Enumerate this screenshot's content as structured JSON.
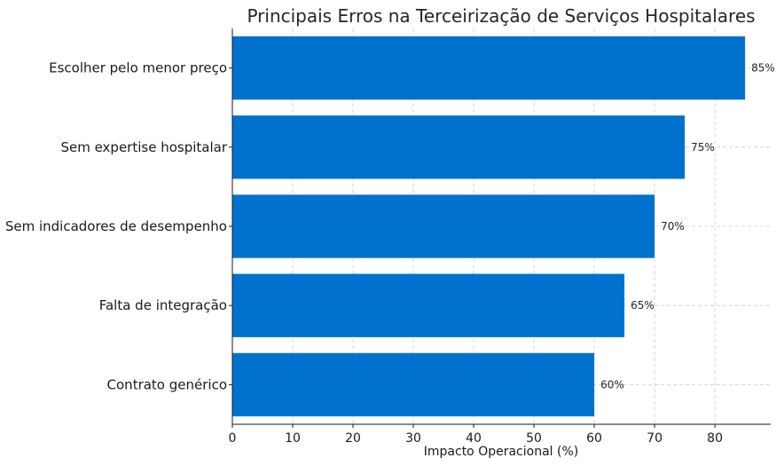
{
  "chart_data": {
    "type": "bar",
    "orientation": "horizontal",
    "title": "Principais Erros na Terceirização de Serviços Hospitalares",
    "xlabel": "Impacto Operacional (%)",
    "ylabel": "",
    "categories": [
      "Escolher pelo menor preço",
      "Sem expertise hospitalar",
      "Sem indicadores de desempenho",
      "Falta de integração",
      "Contrato genérico"
    ],
    "values": [
      85,
      75,
      70,
      65,
      60
    ],
    "data_labels": [
      "85%",
      "75%",
      "70%",
      "65%",
      "60%"
    ],
    "xlim": [
      0,
      89.25
    ],
    "xticks": [
      0,
      10,
      20,
      30,
      40,
      50,
      60,
      70,
      80
    ],
    "xtick_labels": [
      "0",
      "10",
      "20",
      "30",
      "40",
      "50",
      "60",
      "70",
      "80"
    ],
    "grid": true,
    "bar_color": "#0072CE"
  }
}
